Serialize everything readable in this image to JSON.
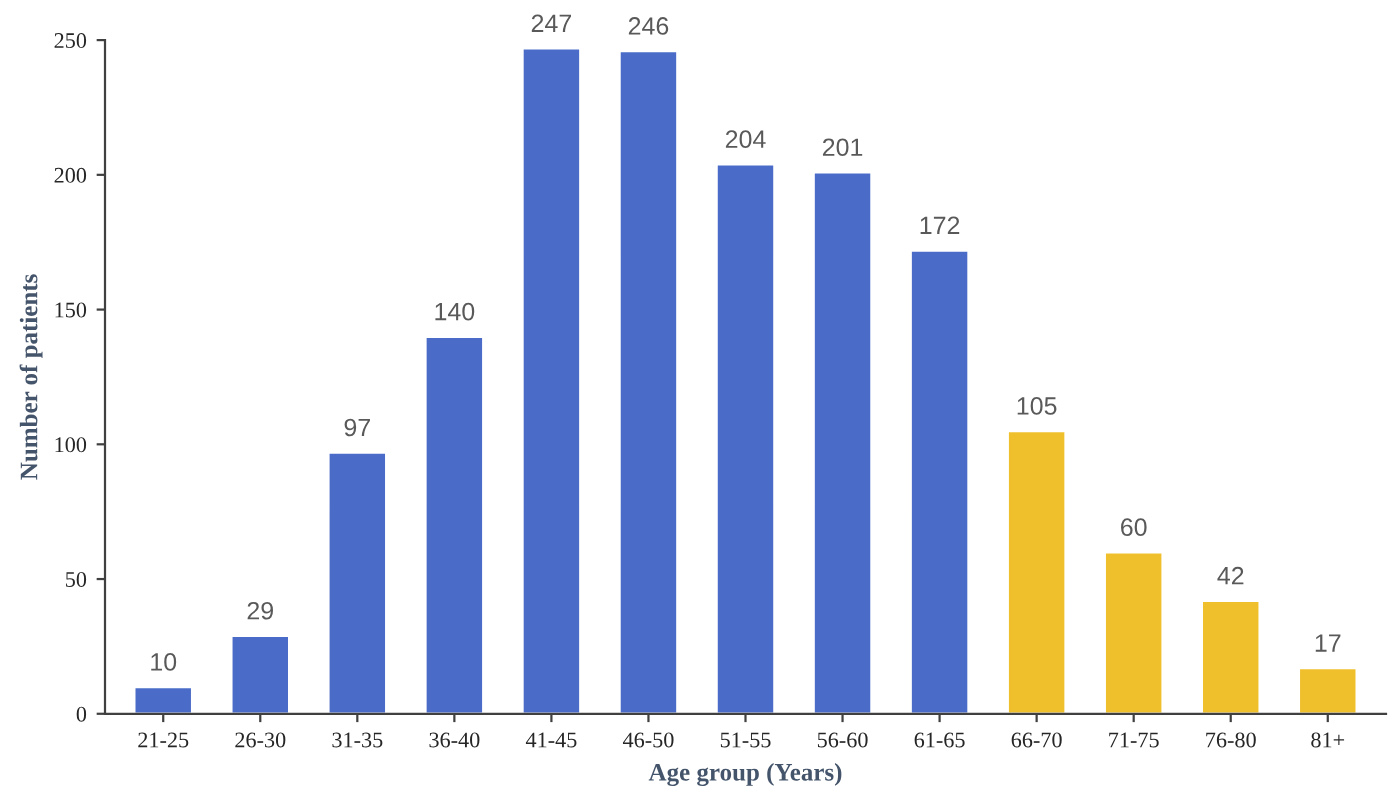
{
  "chart_data": {
    "type": "bar",
    "xlabel": "Age group (Years)",
    "ylabel": "Number of patients",
    "categories": [
      "21-25",
      "26-30",
      "31-35",
      "36-40",
      "41-45",
      "46-50",
      "51-55",
      "56-60",
      "61-65",
      "66-70",
      "71-75",
      "76-80",
      "81+"
    ],
    "values": [
      10,
      29,
      97,
      140,
      247,
      246,
      204,
      201,
      172,
      105,
      60,
      42,
      17
    ],
    "colors": [
      "#4a6cc8",
      "#4a6cc8",
      "#4a6cc8",
      "#4a6cc8",
      "#4a6cc8",
      "#4a6cc8",
      "#4a6cc8",
      "#4a6cc8",
      "#4a6cc8",
      "#f0c02c",
      "#f0c02c",
      "#f0c02c",
      "#f0c02c"
    ],
    "ylim": [
      0,
      250
    ],
    "yticks": [
      0,
      50,
      100,
      150,
      200,
      250
    ],
    "data_labels": true,
    "grid": false,
    "legend": false
  }
}
